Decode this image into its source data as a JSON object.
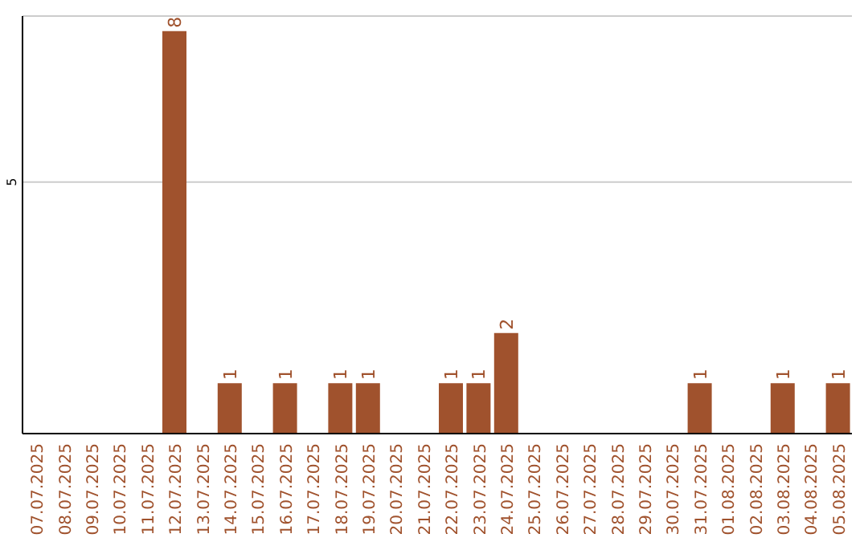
{
  "chart_data": {
    "type": "bar",
    "categories": [
      "07.07.2025",
      "08.07.2025",
      "09.07.2025",
      "10.07.2025",
      "11.07.2025",
      "12.07.2025",
      "13.07.2025",
      "14.07.2025",
      "15.07.2025",
      "16.07.2025",
      "17.07.2025",
      "18.07.2025",
      "19.07.2025",
      "20.07.2025",
      "21.07.2025",
      "22.07.2025",
      "23.07.2025",
      "24.07.2025",
      "25.07.2025",
      "26.07.2025",
      "27.07.2025",
      "28.07.2025",
      "29.07.2025",
      "30.07.2025",
      "31.07.2025",
      "01.08.2025",
      "02.08.2025",
      "03.08.2025",
      "04.08.2025",
      "05.08.2025"
    ],
    "values": [
      0,
      0,
      0,
      0,
      0,
      8,
      0,
      1,
      0,
      1,
      0,
      1,
      1,
      0,
      0,
      1,
      1,
      2,
      0,
      0,
      0,
      0,
      0,
      0,
      1,
      0,
      0,
      1,
      0,
      1
    ],
    "value_labels": [
      null,
      null,
      null,
      null,
      null,
      "8",
      null,
      "1",
      null,
      "1",
      null,
      "1",
      "1",
      null,
      null,
      "1",
      "1",
      "2",
      null,
      null,
      null,
      null,
      null,
      null,
      "1",
      null,
      null,
      "1",
      null,
      "1"
    ],
    "color": "#a0522d",
    "ylim": [
      0,
      8.3
    ],
    "yticks": [
      5
    ],
    "grid": "y"
  }
}
